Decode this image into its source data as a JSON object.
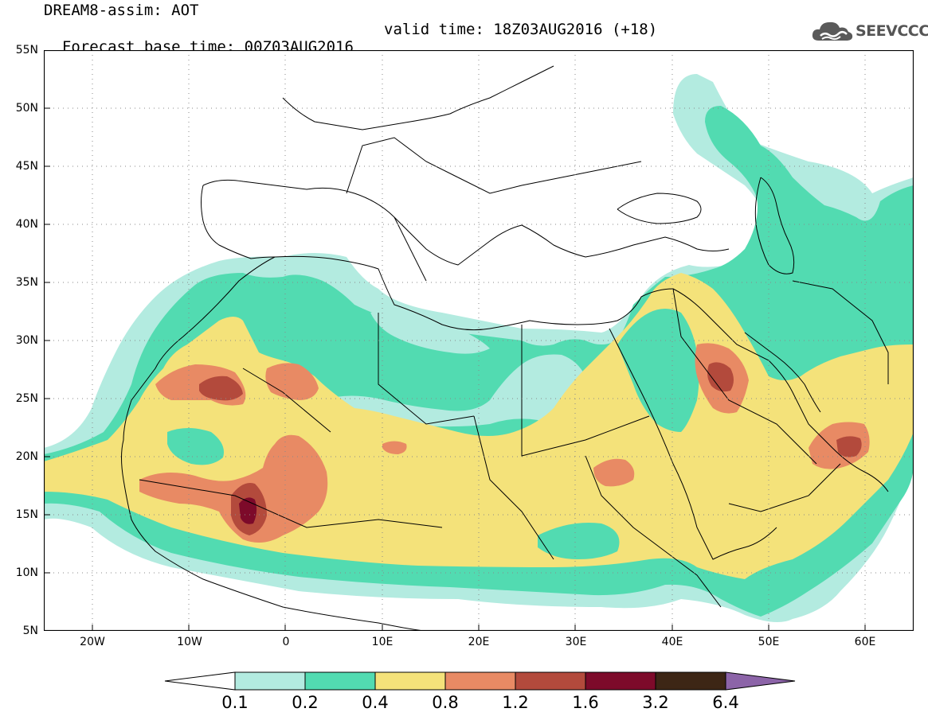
{
  "title": {
    "line1": "DREAM8-assim: AOT",
    "line2_left": "Forecast base time: 00Z03AUG2016",
    "line2_right": "valid time: 18Z03AUG2016 (+18)"
  },
  "logo": {
    "text": "SEEVCCC",
    "icon": "cloud-logo-icon"
  },
  "map": {
    "lon_range": [
      -25,
      65
    ],
    "lat_range": [
      5,
      55
    ],
    "lat_labels": [
      "55N",
      "50N",
      "45N",
      "40N",
      "35N",
      "30N",
      "25N",
      "20N",
      "15N",
      "10N",
      "5N"
    ],
    "lon_labels": [
      "20W",
      "10W",
      "0",
      "10E",
      "20E",
      "30E",
      "40E",
      "50E",
      "60E"
    ],
    "grid": "dotted"
  },
  "colorbar": {
    "labels": [
      "0.1",
      "0.2",
      "0.4",
      "0.8",
      "1.2",
      "1.6",
      "3.2",
      "6.4"
    ],
    "colors": [
      "#ffffff",
      "#b3ebe0",
      "#52dbb1",
      "#f4e27a",
      "#e88a64",
      "#b34a3c",
      "#7d0a2a",
      "#3d2615",
      "#8c64a8"
    ]
  },
  "chart_data": {
    "type": "heatmap",
    "title": "DREAM8-assim: AOT",
    "variable": "AOT",
    "levels": [
      0.1,
      0.2,
      0.4,
      0.8,
      1.2,
      1.6,
      3.2,
      6.4
    ],
    "xlim": [
      -25,
      65
    ],
    "ylim": [
      5,
      55
    ],
    "hotspots": [
      {
        "lon": -4,
        "lat": 15,
        "max_level": 3.2
      },
      {
        "lon": -6,
        "lat": 26,
        "max_level": 1.6
      },
      {
        "lon": 45,
        "lat": 26,
        "max_level": 1.6
      },
      {
        "lon": 58,
        "lat": 20.5,
        "max_level": 1.6
      }
    ]
  }
}
